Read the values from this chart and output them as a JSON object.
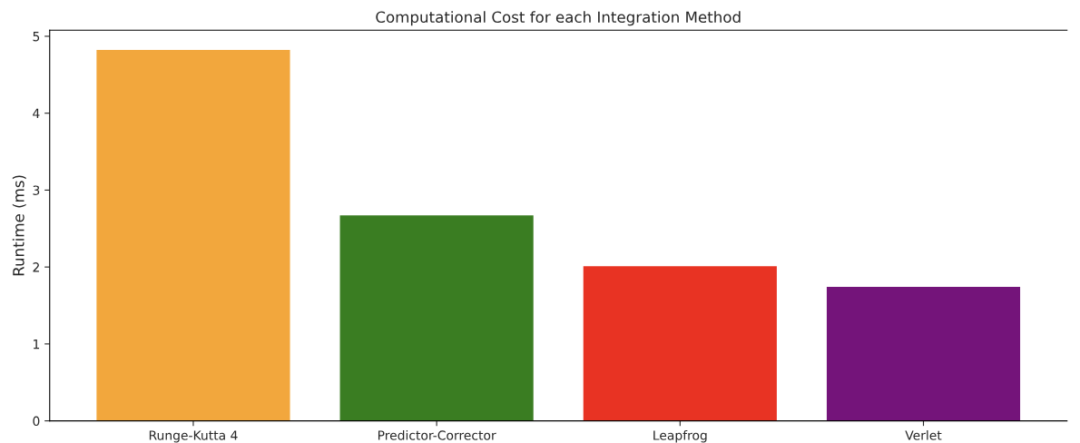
{
  "chart_data": {
    "type": "bar",
    "title": "Computational Cost for each Integration Method",
    "ylabel": "Runtime (ms)",
    "categories": [
      "Runge-Kutta 4",
      "Predictor-Corrector",
      "Leapfrog",
      "Verlet"
    ],
    "values": [
      4.83,
      2.68,
      2.02,
      1.75
    ],
    "colors": [
      "#f2a73d",
      "#3a7d22",
      "#e83323",
      "#74147a"
    ],
    "ylim": [
      0,
      5.08
    ],
    "yticks": [
      0,
      1,
      2,
      3,
      4,
      5
    ],
    "grid": false,
    "legend": false
  }
}
